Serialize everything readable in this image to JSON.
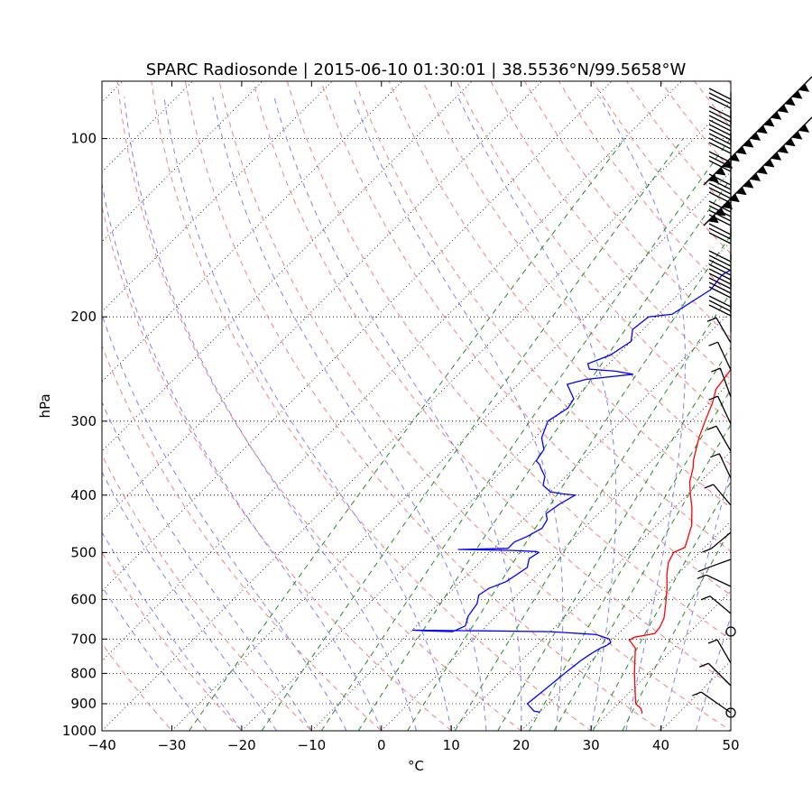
{
  "chart_data": {
    "type": "line",
    "title": "SPARC Radiosonde | 2015-06-10 01:30:01 | 38.5536°N/99.5658°W",
    "xlabel": "°C",
    "ylabel": "hPa",
    "xlim": [
      -40,
      50
    ],
    "ylim": [
      1000,
      80
    ],
    "x_ticks": [
      "−40",
      "−30",
      "−20",
      "−10",
      "0",
      "10",
      "20",
      "30",
      "40",
      "50"
    ],
    "x_tick_values": [
      -40,
      -30,
      -20,
      -10,
      0,
      10,
      20,
      30,
      40,
      50
    ],
    "y_ticks": [
      "100",
      "200",
      "300",
      "400",
      "500",
      "600",
      "700",
      "800",
      "900",
      "1000"
    ],
    "y_tick_values": [
      100,
      200,
      300,
      400,
      500,
      600,
      700,
      800,
      900,
      1000
    ],
    "grid": true,
    "colors": {
      "temperature": "#ff0000",
      "dewpoint": "#0000ff",
      "dry_adiabat": "#f08080",
      "moist_adiabat": "#8080f0",
      "mixing_ratio": "#228b22",
      "isotherm": "#555555"
    },
    "series": [
      {
        "name": "Temperature",
        "x": [
          34.8,
          34.6,
          33.8,
          32.5,
          28.0,
          24.5,
          22.5,
          22.8,
          25.2,
          25.0,
          24.3,
          22.5,
          20.5,
          18.5,
          17.0,
          16.3,
          17.2,
          15.0,
          12.5,
          10.5,
          8.5,
          7.0,
          6.0,
          3.5,
          2.0,
          0.5,
          -1.0,
          -1.5,
          -2.5,
          -3.0,
          -3.5,
          -4.0,
          -4.5,
          -3.5,
          -2.0,
          -2.5,
          -2.0,
          -1.0,
          1.0,
          2.5,
          3.5
        ],
        "y": [
          935,
          929,
          915,
          900,
          800,
          725,
          703,
          695,
          685,
          668,
          645,
          610,
          575,
          545,
          520,
          500,
          490,
          450,
          420,
          400,
          380,
          360,
          350,
          320,
          300,
          280,
          265,
          250,
          230,
          210,
          190,
          175,
          168,
          160,
          150,
          140,
          130,
          125,
          120,
          116,
          113
        ]
      },
      {
        "name": "Dewpoint",
        "x": [
          20.0,
          19.0,
          17.0,
          17.5,
          18.0,
          18.5,
          19.0,
          19.5,
          20.0,
          20.2,
          19.5,
          17.0,
          10.0,
          0.0,
          -6.0,
          -10.0,
          -8.0,
          -4.0,
          -3.0,
          -4.0,
          -4.5,
          -5.5,
          -5.0,
          -3.5,
          -2.5,
          -3.5,
          -3.0,
          -3.5,
          -7.0,
          -15.0,
          -8.0,
          -8.0,
          -7.0,
          -6.0,
          -6.5,
          -7.5,
          -7.0,
          -6.0,
          -8.0,
          -10.0,
          -12.0,
          -13.0,
          -14.5,
          -15.5,
          -16.5,
          -17.0,
          -19.0,
          -20.5,
          -19.5,
          -20.0,
          -23.0,
          -21.0,
          -15.0,
          -18.0,
          -22.0,
          -23.0,
          -21.0,
          -20.0,
          -21.5,
          -21.0,
          -18.0,
          -16.0,
          -16.5,
          -15.0,
          -13.0,
          -12.0,
          -10.0
        ],
        "y": [
          930,
          926,
          900,
          850,
          800,
          760,
          740,
          725,
          718,
          710,
          700,
          688,
          680,
          678,
          677,
          676,
          678,
          680,
          665,
          640,
          610,
          590,
          575,
          560,
          530,
          512,
          500,
          498,
          496,
          494,
          492,
          480,
          470,
          455,
          440,
          430,
          415,
          400,
          398,
          395,
          385,
          372,
          362,
          355,
          350,
          335,
          320,
          300,
          285,
          275,
          260,
          255,
          250,
          247,
          245,
          240,
          232,
          220,
          210,
          200,
          198,
          180,
          170,
          160,
          140,
          130,
          113
        ]
      }
    ],
    "wind_barbs_note": "Wind barbs drawn along right edge from ~940 hPa to ~110 hPa"
  }
}
